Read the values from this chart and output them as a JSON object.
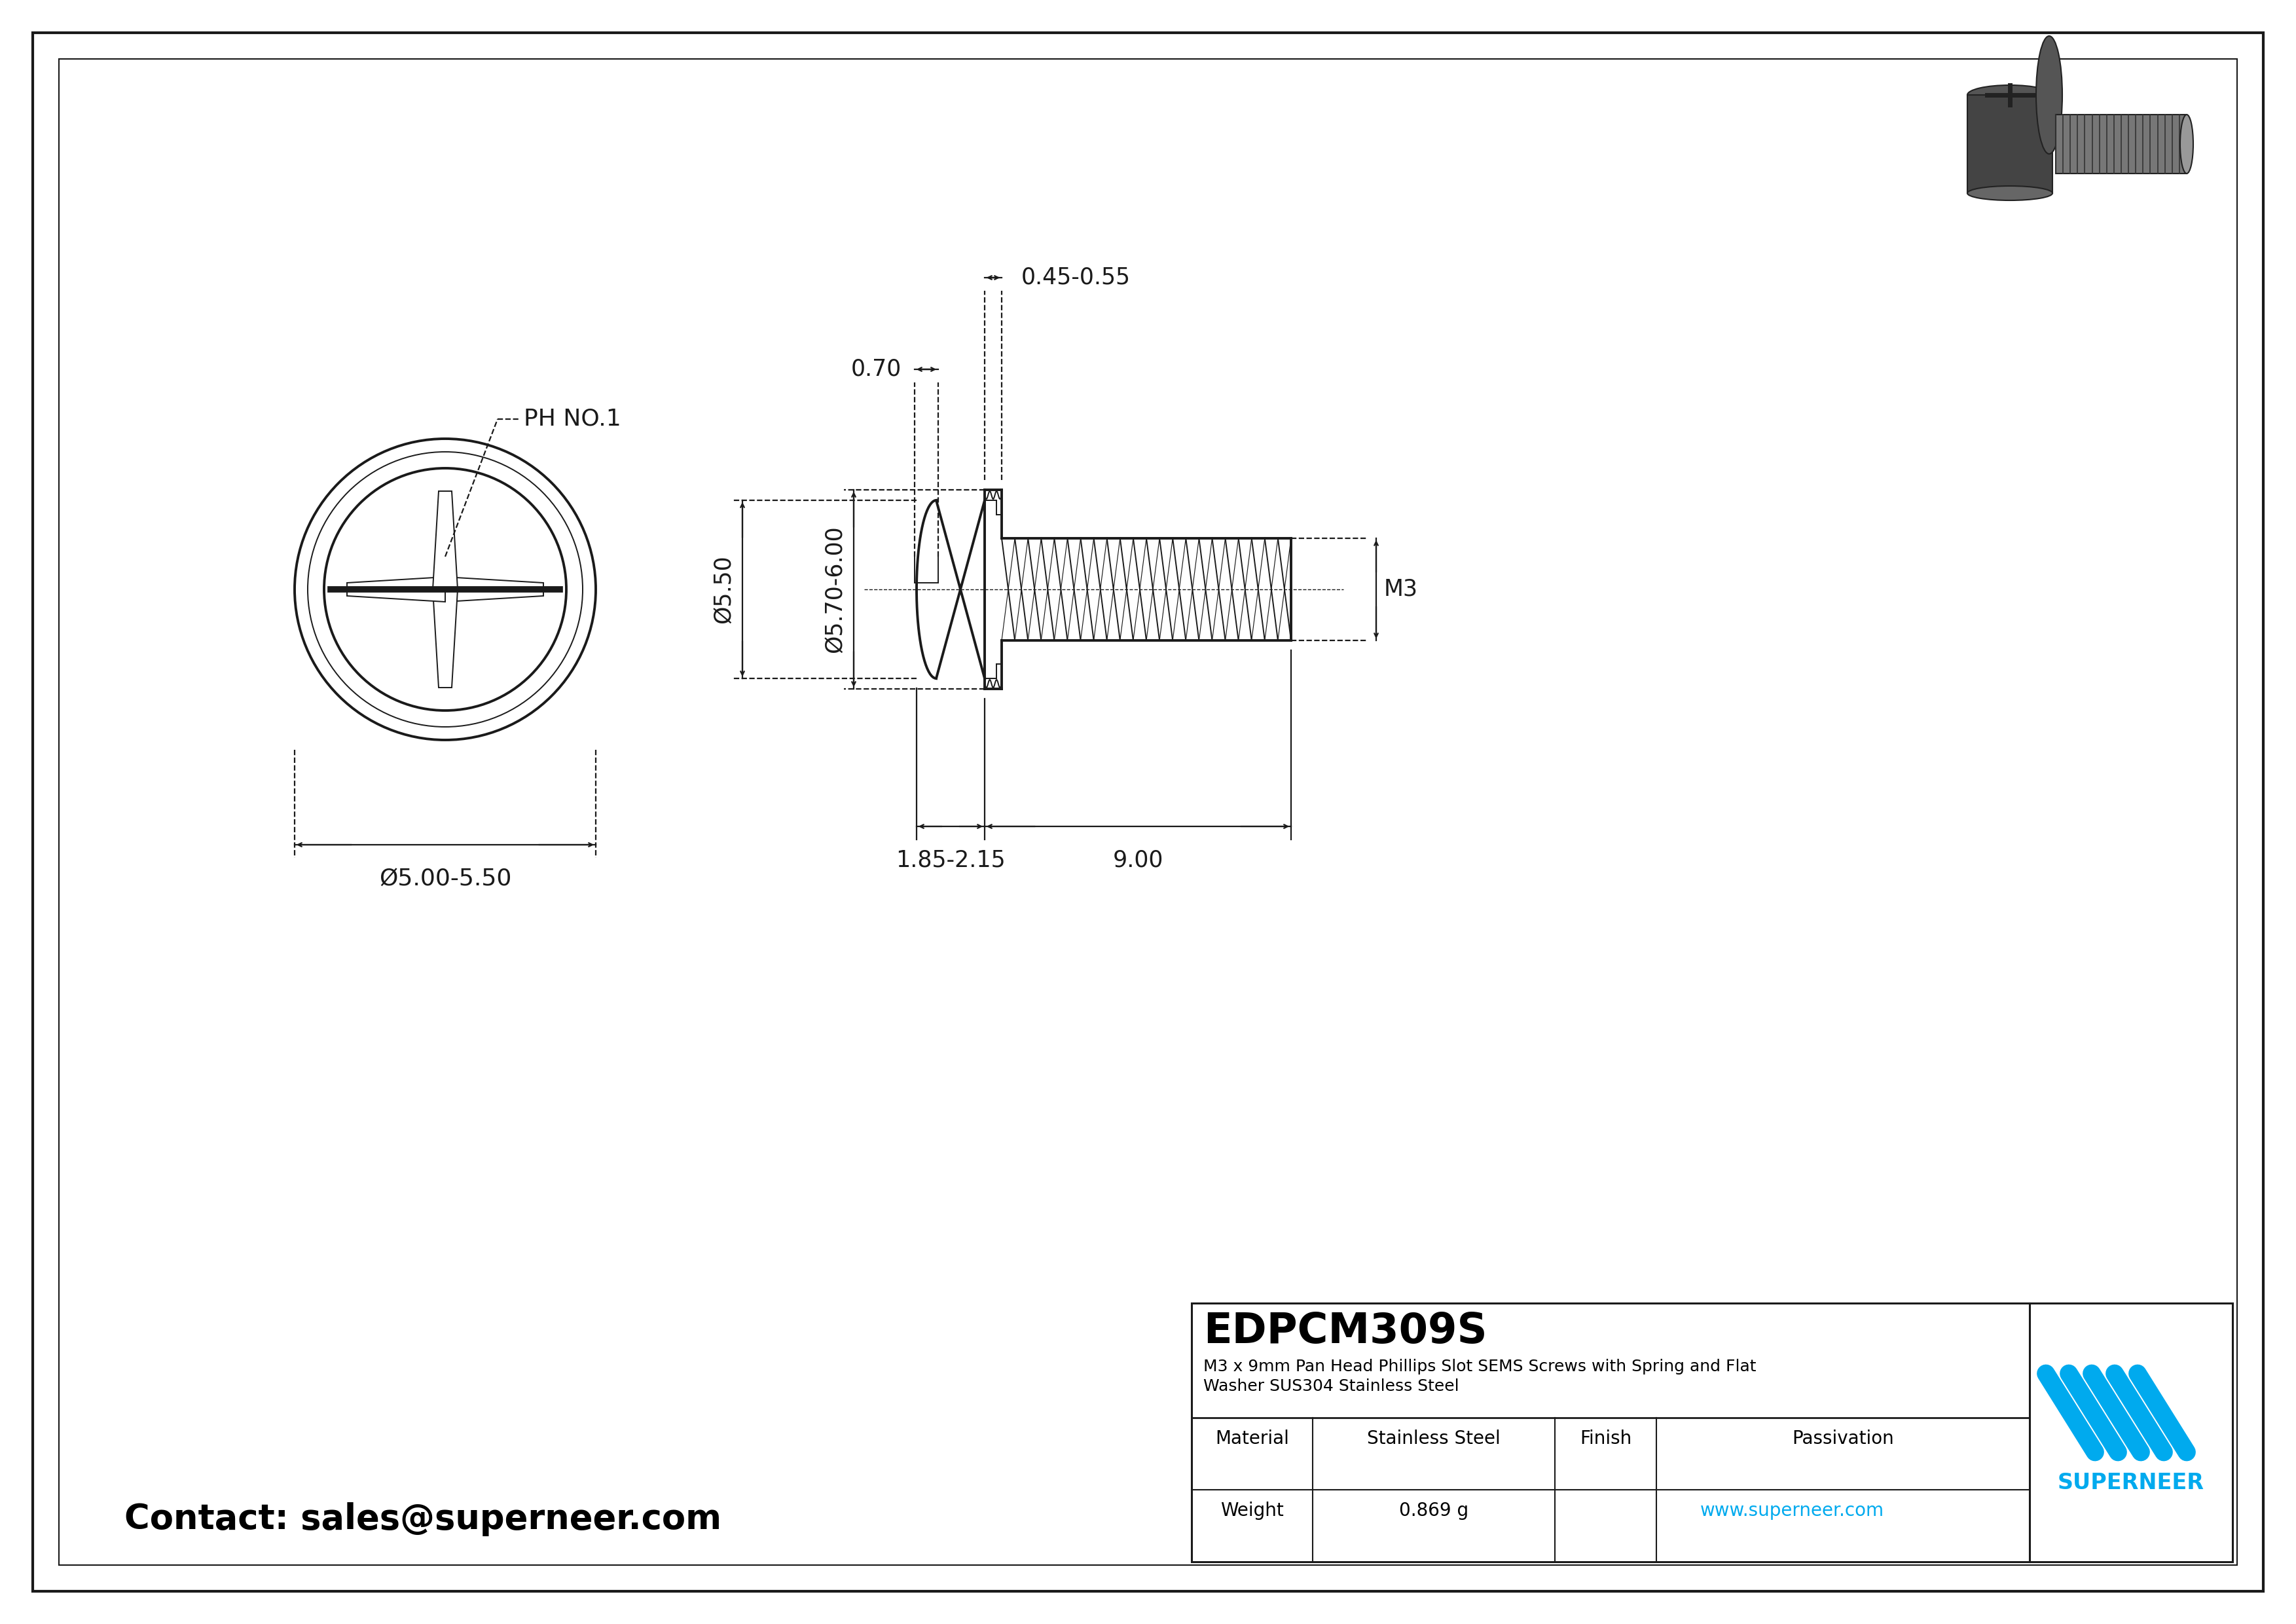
{
  "bg_color": "#ffffff",
  "line_color": "#1a1a1a",
  "dim_color": "#1a1a1a",
  "blue_color": "#00aaee",
  "title_part": "EDPCM309S",
  "desc_line1": "M3 x 9mm Pan Head Phillips Slot SEMS Screws with Spring and Flat",
  "desc_line2": "Washer SUS304 Stainless Steel",
  "material_label": "Material",
  "material_value": "Stainless Steel",
  "finish_label": "Finish",
  "finish_value": "Passivation",
  "weight_label": "Weight",
  "weight_value": "0.869 g",
  "website": "www.superneer.com",
  "contact": "Contact: sales@superneer.com",
  "brand": "SUPERNEER",
  "ph_label": "PH NO.1",
  "dim_head_dia": "Ø5.00-5.50",
  "dim_washer_dia": "Ø5.70-6.00",
  "dim_inner_dia": "Ø5.50",
  "dim_thread": "M3",
  "dim_head_len": "1.85-2.15",
  "dim_screw_len": "9.00",
  "dim_slot_width": "0.70",
  "dim_washer_t": "0.45-0.55"
}
